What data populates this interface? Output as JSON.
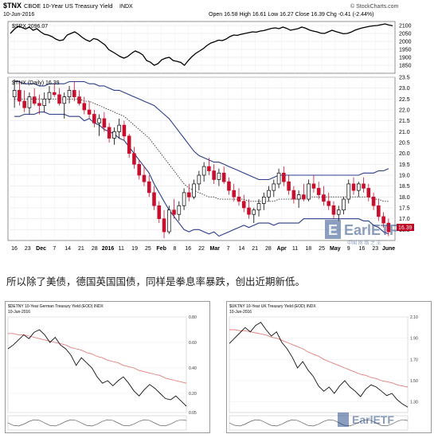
{
  "header": {
    "ticker": "$TNX",
    "name": "CBOE 10-Year US Treasury Yield",
    "exchange": "INDX",
    "date": "10-Jun-2016",
    "stats": "Open 16.58  High 16.61  Low 16.27  Close 16.39  Chg -0.41 (-2.44%)",
    "credit": "© StockCharts.com",
    "spx_label": "$SPX 2096.07",
    "tnx_label": "$TNX (Daily) 16.39",
    "last_value": "16.39"
  },
  "watermark": {
    "brand": "EarlETF",
    "subtitle": "中国 网 络 之 王"
  },
  "caption": "所以除了美债，德国英国国债，同样是拳息率暴跌，创出近期新低。",
  "thumbnails": [
    {
      "title": "$DETNY 10-Year German Treasury Yield (EOD) INDX",
      "date": "10-Jun-2016",
      "price_max": 0.8,
      "price_min": 0.05,
      "price_ticks": [
        "0.80",
        "0.60",
        "0.40",
        "0.20",
        "0.05"
      ],
      "values": [
        0.55,
        0.58,
        0.62,
        0.66,
        0.63,
        0.68,
        0.7,
        0.66,
        0.6,
        0.64,
        0.58,
        0.55,
        0.5,
        0.42,
        0.48,
        0.44,
        0.4,
        0.33,
        0.28,
        0.3,
        0.26,
        0.3,
        0.33,
        0.28,
        0.22,
        0.18,
        0.23,
        0.27,
        0.24,
        0.2,
        0.16,
        0.15,
        0.18,
        0.14,
        0.1
      ],
      "ma_values": [
        0.67,
        0.67,
        0.66,
        0.66,
        0.65,
        0.64,
        0.63,
        0.62,
        0.61,
        0.6,
        0.59,
        0.58,
        0.56,
        0.55,
        0.54,
        0.52,
        0.51,
        0.49,
        0.48,
        0.46,
        0.45,
        0.44,
        0.42,
        0.41,
        0.4,
        0.38,
        0.37,
        0.36,
        0.35,
        0.34,
        0.32,
        0.31,
        0.3,
        0.29,
        0.28
      ]
    },
    {
      "title": "$UKTNY 10-Year UK Treasury Yield (EOD) INDX",
      "date": "10-Jun-2016",
      "price_max": 2.1,
      "price_min": 1.2,
      "price_ticks": [
        "2.10",
        "1.90",
        "1.70",
        "1.50",
        "1.30"
      ],
      "values": [
        1.85,
        1.9,
        1.95,
        2.0,
        1.96,
        2.02,
        2.05,
        1.98,
        1.92,
        1.96,
        1.86,
        1.8,
        1.72,
        1.62,
        1.68,
        1.6,
        1.54,
        1.45,
        1.4,
        1.44,
        1.38,
        1.45,
        1.5,
        1.44,
        1.4,
        1.35,
        1.42,
        1.46,
        1.44,
        1.4,
        1.36,
        1.38,
        1.32,
        1.28,
        1.25
      ],
      "ma_values": [
        1.98,
        1.98,
        1.97,
        1.97,
        1.96,
        1.95,
        1.94,
        1.93,
        1.91,
        1.9,
        1.88,
        1.86,
        1.84,
        1.82,
        1.8,
        1.77,
        1.75,
        1.73,
        1.7,
        1.68,
        1.66,
        1.64,
        1.62,
        1.6,
        1.58,
        1.56,
        1.55,
        1.53,
        1.52,
        1.5,
        1.49,
        1.48,
        1.46,
        1.45,
        1.44
      ]
    }
  ],
  "chart_data": {
    "type": "line",
    "spx": {
      "name": "$SPX",
      "ylim": [
        1800,
        2125
      ],
      "ticks": [
        "2100",
        "2050",
        "2000",
        "1950",
        "1900",
        "1850"
      ],
      "values": [
        2050,
        2075,
        2095,
        2088,
        2078,
        2090,
        2070,
        2080,
        2060,
        2045,
        2040,
        2030,
        2015,
        2005,
        2010,
        2040,
        2050,
        2060,
        2045,
        2025,
        2010,
        2000,
        2018,
        2012,
        1995,
        1978,
        1948,
        1935,
        1920,
        1905,
        1895,
        1905,
        1925,
        1940,
        1930,
        1915,
        1880,
        1870,
        1850,
        1860,
        1885,
        1895,
        1900,
        1880,
        1875,
        1868,
        1850,
        1880,
        1905,
        1925,
        1940,
        1955,
        1975,
        1990,
        1998,
        2008,
        2005,
        2015,
        2030,
        2040,
        2038,
        2045,
        2050,
        2055,
        2060,
        2058,
        2065,
        2068,
        2075,
        2082,
        2085,
        2080,
        2090,
        2082,
        2070,
        2075,
        2080,
        2090,
        2083,
        2072,
        2065,
        2060,
        2052,
        2050,
        2060,
        2070,
        2062,
        2055,
        2048,
        2050,
        2058,
        2070,
        2078,
        2085,
        2090,
        2095,
        2098,
        2100,
        2105,
        2110,
        2103,
        2098
      ]
    },
    "tnx": {
      "name": "$TNX (Daily)",
      "ylim": [
        16.0,
        23.5
      ],
      "ticks": [
        "23.5",
        "23.0",
        "22.5",
        "22.0",
        "21.5",
        "21.0",
        "20.5",
        "20.0",
        "19.5",
        "19.0",
        "18.5",
        "18.0",
        "17.5",
        "17.0",
        "16.5"
      ],
      "highlight_tick": "16.39",
      "x_ticks": [
        "16",
        "23",
        "Dec",
        "7",
        "14",
        "21",
        "28",
        "2016",
        "11",
        "19",
        "25",
        "Feb",
        "8",
        "16",
        "22",
        "Mar",
        "7",
        "14",
        "21",
        "28",
        "Apr",
        "11",
        "18",
        "25",
        "May",
        "9",
        "16",
        "23",
        "June"
      ],
      "candles": [
        {
          "o": 22.6,
          "h": 23.4,
          "l": 22.1,
          "c": 22.9
        },
        {
          "o": 22.9,
          "h": 23.3,
          "l": 22.2,
          "c": 22.4
        },
        {
          "o": 22.4,
          "h": 22.9,
          "l": 21.9,
          "c": 22.1
        },
        {
          "o": 22.1,
          "h": 22.8,
          "l": 21.8,
          "c": 22.6
        },
        {
          "o": 22.6,
          "h": 23.0,
          "l": 22.2,
          "c": 22.3
        },
        {
          "o": 22.3,
          "h": 22.7,
          "l": 21.8,
          "c": 22.2
        },
        {
          "o": 22.2,
          "h": 22.8,
          "l": 21.9,
          "c": 22.5
        },
        {
          "o": 22.5,
          "h": 23.1,
          "l": 22.3,
          "c": 22.8
        },
        {
          "o": 22.8,
          "h": 23.2,
          "l": 22.6,
          "c": 22.7
        },
        {
          "o": 22.7,
          "h": 23.0,
          "l": 22.2,
          "c": 22.3
        },
        {
          "o": 22.3,
          "h": 22.8,
          "l": 21.6,
          "c": 22.6
        },
        {
          "o": 22.6,
          "h": 23.1,
          "l": 22.3,
          "c": 22.9
        },
        {
          "o": 22.9,
          "h": 23.3,
          "l": 22.4,
          "c": 22.6
        },
        {
          "o": 22.6,
          "h": 22.9,
          "l": 22.2,
          "c": 22.3
        },
        {
          "o": 22.3,
          "h": 22.6,
          "l": 21.8,
          "c": 22.0
        },
        {
          "o": 22.0,
          "h": 22.4,
          "l": 21.6,
          "c": 21.8
        },
        {
          "o": 21.8,
          "h": 22.0,
          "l": 21.2,
          "c": 21.4
        },
        {
          "o": 21.4,
          "h": 21.8,
          "l": 20.8,
          "c": 21.6
        },
        {
          "o": 21.6,
          "h": 21.9,
          "l": 21.0,
          "c": 21.2
        },
        {
          "o": 21.2,
          "h": 21.4,
          "l": 20.5,
          "c": 20.7
        },
        {
          "o": 20.7,
          "h": 21.2,
          "l": 20.4,
          "c": 21.0
        },
        {
          "o": 21.0,
          "h": 21.6,
          "l": 20.7,
          "c": 21.3
        },
        {
          "o": 21.3,
          "h": 21.5,
          "l": 20.6,
          "c": 20.8
        },
        {
          "o": 20.8,
          "h": 20.9,
          "l": 19.8,
          "c": 20.0
        },
        {
          "o": 20.0,
          "h": 20.3,
          "l": 19.3,
          "c": 19.5
        },
        {
          "o": 19.5,
          "h": 19.7,
          "l": 18.8,
          "c": 19.0
        },
        {
          "o": 19.0,
          "h": 19.4,
          "l": 18.5,
          "c": 18.7
        },
        {
          "o": 18.7,
          "h": 19.0,
          "l": 18.0,
          "c": 18.2
        },
        {
          "o": 18.2,
          "h": 18.5,
          "l": 17.4,
          "c": 17.6
        },
        {
          "o": 17.6,
          "h": 17.8,
          "l": 16.8,
          "c": 17.0
        },
        {
          "o": 17.0,
          "h": 17.4,
          "l": 16.1,
          "c": 16.4
        },
        {
          "o": 16.4,
          "h": 17.6,
          "l": 16.3,
          "c": 17.4
        },
        {
          "o": 17.4,
          "h": 17.9,
          "l": 17.0,
          "c": 17.2
        },
        {
          "o": 17.2,
          "h": 17.8,
          "l": 16.9,
          "c": 17.6
        },
        {
          "o": 17.6,
          "h": 18.4,
          "l": 17.4,
          "c": 18.2
        },
        {
          "o": 18.2,
          "h": 18.6,
          "l": 17.8,
          "c": 18.0
        },
        {
          "o": 18.0,
          "h": 18.8,
          "l": 17.9,
          "c": 18.6
        },
        {
          "o": 18.6,
          "h": 19.2,
          "l": 18.3,
          "c": 19.0
        },
        {
          "o": 19.0,
          "h": 19.6,
          "l": 18.7,
          "c": 19.4
        },
        {
          "o": 19.4,
          "h": 19.8,
          "l": 19.0,
          "c": 19.2
        },
        {
          "o": 19.2,
          "h": 19.5,
          "l": 18.6,
          "c": 18.8
        },
        {
          "o": 18.8,
          "h": 19.3,
          "l": 18.5,
          "c": 19.1
        },
        {
          "o": 19.1,
          "h": 19.4,
          "l": 18.6,
          "c": 18.7
        },
        {
          "o": 18.7,
          "h": 18.9,
          "l": 18.1,
          "c": 18.3
        },
        {
          "o": 18.3,
          "h": 18.6,
          "l": 17.8,
          "c": 18.0
        },
        {
          "o": 18.0,
          "h": 18.4,
          "l": 17.6,
          "c": 17.8
        },
        {
          "o": 17.8,
          "h": 18.1,
          "l": 17.3,
          "c": 17.5
        },
        {
          "o": 17.5,
          "h": 17.9,
          "l": 17.0,
          "c": 17.2
        },
        {
          "o": 17.2,
          "h": 17.5,
          "l": 16.8,
          "c": 17.4
        },
        {
          "o": 17.4,
          "h": 17.9,
          "l": 17.1,
          "c": 17.7
        },
        {
          "o": 17.7,
          "h": 18.2,
          "l": 17.4,
          "c": 18.0
        },
        {
          "o": 18.0,
          "h": 18.5,
          "l": 17.8,
          "c": 18.3
        },
        {
          "o": 18.3,
          "h": 18.8,
          "l": 18.0,
          "c": 18.6
        },
        {
          "o": 18.6,
          "h": 19.3,
          "l": 18.4,
          "c": 19.1
        },
        {
          "o": 19.1,
          "h": 19.4,
          "l": 18.5,
          "c": 18.7
        },
        {
          "o": 18.7,
          "h": 19.0,
          "l": 18.1,
          "c": 18.3
        },
        {
          "o": 18.3,
          "h": 18.5,
          "l": 17.7,
          "c": 17.9
        },
        {
          "o": 17.9,
          "h": 18.3,
          "l": 17.5,
          "c": 18.1
        },
        {
          "o": 18.1,
          "h": 18.6,
          "l": 17.8,
          "c": 17.9
        },
        {
          "o": 17.9,
          "h": 18.8,
          "l": 17.8,
          "c": 18.6
        },
        {
          "o": 18.6,
          "h": 19.0,
          "l": 18.2,
          "c": 18.4
        },
        {
          "o": 18.4,
          "h": 18.7,
          "l": 17.9,
          "c": 18.1
        },
        {
          "o": 18.1,
          "h": 18.5,
          "l": 17.6,
          "c": 17.8
        },
        {
          "o": 17.8,
          "h": 18.2,
          "l": 17.4,
          "c": 17.6
        },
        {
          "o": 17.6,
          "h": 17.8,
          "l": 17.0,
          "c": 17.2
        },
        {
          "o": 17.2,
          "h": 17.6,
          "l": 16.9,
          "c": 17.4
        },
        {
          "o": 17.4,
          "h": 18.0,
          "l": 17.2,
          "c": 17.9
        },
        {
          "o": 17.9,
          "h": 18.8,
          "l": 17.7,
          "c": 18.6
        },
        {
          "o": 18.6,
          "h": 18.9,
          "l": 18.1,
          "c": 18.3
        },
        {
          "o": 18.3,
          "h": 18.7,
          "l": 18.0,
          "c": 18.6
        },
        {
          "o": 18.6,
          "h": 18.9,
          "l": 18.2,
          "c": 18.4
        },
        {
          "o": 18.4,
          "h": 18.6,
          "l": 17.8,
          "c": 18.0
        },
        {
          "o": 18.0,
          "h": 18.2,
          "l": 17.4,
          "c": 17.6
        },
        {
          "o": 17.6,
          "h": 17.9,
          "l": 16.9,
          "c": 17.1
        },
        {
          "o": 17.1,
          "h": 17.3,
          "l": 16.6,
          "c": 16.8
        },
        {
          "o": 16.8,
          "h": 17.0,
          "l": 16.2,
          "c": 16.4
        }
      ],
      "bb_upper": [
        23.3,
        23.3,
        23.2,
        23.2,
        23.2,
        23.1,
        23.1,
        23.2,
        23.2,
        23.2,
        23.2,
        23.3,
        23.3,
        23.3,
        23.3,
        23.2,
        23.2,
        23.1,
        23.1,
        23.0,
        22.9,
        22.9,
        22.8,
        22.7,
        22.6,
        22.5,
        22.4,
        22.3,
        22.2,
        22.0,
        21.8,
        21.6,
        21.3,
        21.0,
        20.7,
        20.4,
        20.1,
        19.9,
        19.8,
        19.7,
        19.6,
        19.6,
        19.5,
        19.4,
        19.3,
        19.2,
        19.1,
        19.0,
        18.9,
        18.8,
        18.8,
        18.8,
        18.9,
        19.0,
        19.0,
        19.0,
        19.0,
        19.0,
        19.0,
        19.0,
        19.0,
        19.0,
        19.0,
        19.0,
        19.0,
        19.0,
        19.0,
        19.0,
        19.0,
        19.0,
        19.1,
        19.1,
        19.1,
        19.2,
        19.2,
        19.3
      ],
      "bb_middle": [
        22.5,
        22.5,
        22.5,
        22.5,
        22.5,
        22.5,
        22.5,
        22.5,
        22.5,
        22.5,
        22.5,
        22.5,
        22.5,
        22.5,
        22.4,
        22.4,
        22.3,
        22.2,
        22.1,
        22.0,
        21.9,
        21.8,
        21.7,
        21.5,
        21.3,
        21.1,
        20.9,
        20.7,
        20.4,
        20.1,
        19.8,
        19.5,
        19.2,
        18.9,
        18.6,
        18.4,
        18.3,
        18.2,
        18.1,
        18.0,
        18.0,
        17.9,
        17.9,
        17.9,
        17.9,
        17.9,
        17.9,
        17.8,
        17.8,
        17.8,
        17.8,
        17.8,
        17.8,
        17.9,
        17.9,
        17.9,
        17.9,
        17.9,
        18.0,
        18.0,
        18.0,
        18.0,
        18.0,
        18.0,
        18.0,
        18.0,
        18.0,
        18.0,
        18.0,
        18.0,
        18.0,
        18.0,
        17.9,
        17.9,
        17.8,
        17.8
      ],
      "bb_lower": [
        21.7,
        21.7,
        21.8,
        21.8,
        21.8,
        21.9,
        21.9,
        21.8,
        21.8,
        21.8,
        21.8,
        21.7,
        21.7,
        21.7,
        21.5,
        21.6,
        21.4,
        21.3,
        21.1,
        21.0,
        20.9,
        20.7,
        20.6,
        20.3,
        20.0,
        19.7,
        19.4,
        19.1,
        18.6,
        18.2,
        17.8,
        17.4,
        17.1,
        16.8,
        16.5,
        16.4,
        16.5,
        16.5,
        16.4,
        16.3,
        16.4,
        16.2,
        16.3,
        16.4,
        16.5,
        16.6,
        16.7,
        16.6,
        16.7,
        16.8,
        16.8,
        16.8,
        16.7,
        16.8,
        16.8,
        16.8,
        16.8,
        16.8,
        17.0,
        17.0,
        17.0,
        17.0,
        17.0,
        17.0,
        17.0,
        17.0,
        17.0,
        17.0,
        17.0,
        17.0,
        16.9,
        16.9,
        16.7,
        16.6,
        16.4,
        16.3
      ]
    },
    "grid": true
  }
}
